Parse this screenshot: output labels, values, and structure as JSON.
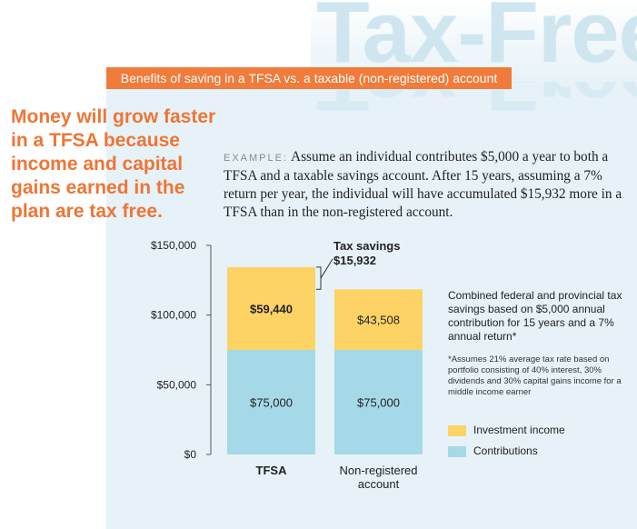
{
  "colors": {
    "orange": "#f07b3a",
    "headline": "#ef7535",
    "panel": "#e6f2f8",
    "contributions": "#a6d9e8",
    "investment_income": "#fdd366"
  },
  "watermark": "Tax-Free",
  "banner": "Benefits of saving in a TFSA vs. a taxable (non-registered) account",
  "headline": "Money will grow faster in a TFSA because income and capital gains earned in the plan are tax free.",
  "example": {
    "label": "EXAMPLE:",
    "text": "Assume an individual contributes $5,000 a year to both a TFSA and a taxable savings account. After 15 years, assuming a 7% return per year, the individual will have accumulated $15,932 more in a TFSA than in the non-registered account."
  },
  "note": "Combined federal and provincial tax savings based on $5,000 annual contribution for 15 years and a 7% annual return*",
  "footnote": "*Assumes 21% average tax rate based on portfolio consisting of 40% interest, 30% dividends and 30% capital gains income for a middle income earner",
  "chart_data": {
    "type": "bar",
    "stacked": true,
    "categories": [
      "TFSA",
      "Non-registered account"
    ],
    "category_labels": [
      [
        "TFSA"
      ],
      [
        "Non-registered",
        "account"
      ]
    ],
    "series": [
      {
        "name": "Contributions",
        "values": [
          75000,
          75000
        ],
        "labels": [
          "$75,000",
          "$75,000"
        ],
        "color": "#a6d9e8"
      },
      {
        "name": "Investment income",
        "values": [
          59440,
          43508
        ],
        "labels": [
          "$59,440",
          "$43,508"
        ],
        "color": "#fdd366"
      }
    ],
    "yticks": [
      0,
      50000,
      100000,
      150000
    ],
    "ytick_labels": [
      "$0",
      "$50,000",
      "$100,000",
      "$150,000"
    ],
    "ylim": [
      0,
      150000
    ],
    "annotation": {
      "lines": [
        "Tax savings",
        "$15,932"
      ],
      "value": 15932
    },
    "legend": [
      "Investment income",
      "Contributions"
    ]
  }
}
